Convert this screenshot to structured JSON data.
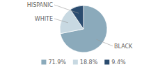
{
  "chart_data": {
    "type": "pie",
    "categories": [
      "BLACK",
      "WHITE",
      "HISPANIC"
    ],
    "values": [
      71.9,
      18.8,
      9.4
    ],
    "value_labels": [
      "71.9%",
      "18.8%",
      "9.4%"
    ],
    "colors": [
      "#8BAABB",
      "#C8D9E2",
      "#2B4C6F"
    ],
    "legend": "bottom"
  }
}
